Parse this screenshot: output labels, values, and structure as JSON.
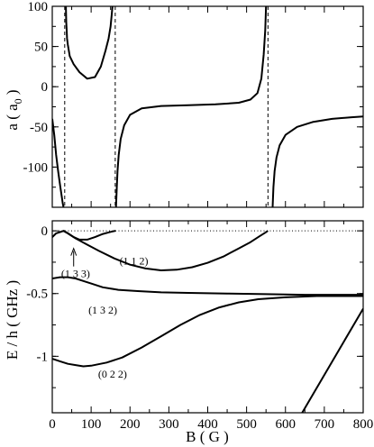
{
  "chart_data": [
    {
      "type": "line",
      "panel": "top",
      "ylabel": "a ( a",
      "ylabel_sub": "0",
      "ylabel_close": " )",
      "xlim": [
        0,
        800
      ],
      "ylim": [
        -150,
        100
      ],
      "yticks": [
        100,
        50,
        0,
        -50,
        -100
      ],
      "ytick_labels": [
        "100",
        "50",
        "0",
        "-50",
        "-100"
      ],
      "xticks": [
        0,
        100,
        200,
        300,
        400,
        500,
        600,
        700,
        800
      ],
      "resonance_poles": [
        32,
        162,
        555
      ],
      "series": [
        {
          "x": [
            0,
            5,
            10,
            15,
            20,
            24,
            27,
            29
          ],
          "y": [
            -40,
            -60,
            -85,
            -105,
            -122,
            -135,
            -145,
            -150
          ]
        },
        {
          "x": [
            35,
            36,
            37,
            38,
            40,
            45,
            55,
            70,
            90,
            110,
            125,
            137,
            145,
            150,
            153,
            155
          ],
          "y": [
            100,
            80,
            70,
            60,
            52,
            38,
            28,
            18,
            10,
            12,
            25,
            45,
            60,
            75,
            90,
            100
          ]
        },
        {
          "x": [
            164,
            166,
            168,
            171,
            176,
            185,
            200,
            230,
            280,
            350,
            420,
            480,
            510,
            528,
            538,
            544,
            548,
            550
          ],
          "y": [
            -150,
            -125,
            -105,
            -85,
            -65,
            -48,
            -35,
            -27,
            -24,
            -23,
            -22,
            -20,
            -16,
            -8,
            10,
            40,
            70,
            100
          ]
        },
        {
          "x": [
            567,
            569,
            572,
            577,
            585,
            600,
            630,
            670,
            720,
            770,
            800
          ],
          "y": [
            -150,
            -125,
            -105,
            -88,
            -73,
            -60,
            -50,
            -44,
            -40,
            -38,
            -37
          ]
        }
      ]
    },
    {
      "type": "line",
      "panel": "bottom",
      "xlabel": "B ( G )",
      "ylabel": "E / h ( GHz )",
      "xlim": [
        0,
        800
      ],
      "ylim": [
        -1.45,
        0.08
      ],
      "yticks": [
        0,
        -0.5,
        -1
      ],
      "ytick_labels": [
        "0",
        "-0.5",
        "-1"
      ],
      "xticks": [
        0,
        100,
        200,
        300,
        400,
        500,
        600,
        700,
        800
      ],
      "xtick_labels": [
        "0",
        "100",
        "200",
        "300",
        "400",
        "500",
        "600",
        "700",
        "800"
      ],
      "series": [
        {
          "label": "(1 1 2)",
          "x": [
            0,
            10,
            20,
            30,
            40,
            55,
            70,
            90,
            110,
            130,
            150,
            163
          ],
          "y": [
            -0.05,
            -0.02,
            -0.01,
            0,
            -0.02,
            -0.05,
            -0.07,
            -0.07,
            -0.05,
            -0.025,
            -0.008,
            0
          ]
        },
        {
          "label": "(1 3 3)",
          "x": [
            28,
            40,
            60,
            90,
            120,
            160,
            200,
            240,
            280,
            320,
            360,
            400,
            440,
            480,
            510,
            535,
            548,
            555
          ],
          "y": [
            0,
            -0.02,
            -0.06,
            -0.11,
            -0.16,
            -0.22,
            -0.27,
            -0.3,
            -0.315,
            -0.31,
            -0.29,
            -0.255,
            -0.205,
            -0.14,
            -0.09,
            -0.04,
            -0.015,
            0
          ]
        },
        {
          "label": "(1 3 2)",
          "x": [
            0,
            20,
            40,
            60,
            80,
            100,
            130,
            170,
            220,
            280,
            350,
            450,
            550,
            650,
            800
          ],
          "y": [
            -0.38,
            -0.37,
            -0.37,
            -0.38,
            -0.4,
            -0.42,
            -0.45,
            -0.47,
            -0.48,
            -0.49,
            -0.495,
            -0.5,
            -0.505,
            -0.51,
            -0.51
          ]
        },
        {
          "label": "(0 2 2)",
          "x": [
            0,
            20,
            40,
            60,
            80,
            100,
            140,
            180,
            230,
            280,
            330,
            380,
            430,
            480,
            530,
            600,
            680,
            800
          ],
          "y": [
            -1.02,
            -1.04,
            -1.06,
            -1.07,
            -1.08,
            -1.075,
            -1.05,
            -1.01,
            -0.93,
            -0.84,
            -0.75,
            -0.67,
            -0.61,
            -0.57,
            -0.545,
            -0.53,
            -0.52,
            -0.52
          ]
        },
        {
          "x": [
            643,
            800
          ],
          "y": [
            -1.45,
            -0.62
          ]
        }
      ],
      "annotations": [
        {
          "text": "(1 3 3)",
          "x": 60,
          "y": -0.37,
          "arrow_to": [
            55,
            -0.14
          ]
        },
        {
          "text": "(1 1 2)",
          "x": 210,
          "y": -0.27
        },
        {
          "text": "(1 3 2)",
          "x": 130,
          "y": -0.66
        },
        {
          "text": "(0 2 2)",
          "x": 155,
          "y": -1.17
        }
      ]
    }
  ]
}
